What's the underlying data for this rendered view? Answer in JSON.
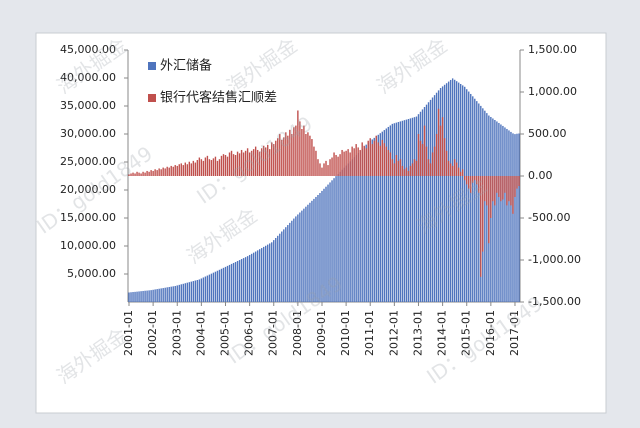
{
  "chart_data": {
    "type": "bar",
    "watermark": [
      "海外掘金",
      "ID：gold1849"
    ],
    "categories": [
      "2001-01",
      null,
      null,
      null,
      null,
      null,
      null,
      null,
      null,
      null,
      null,
      null,
      "2002-01",
      null,
      null,
      null,
      null,
      null,
      null,
      null,
      null,
      null,
      null,
      null,
      "2003-01",
      null,
      null,
      null,
      null,
      null,
      null,
      null,
      null,
      null,
      null,
      null,
      "2004-01",
      null,
      null,
      null,
      null,
      null,
      null,
      null,
      null,
      null,
      null,
      null,
      "2005-01",
      null,
      null,
      null,
      null,
      null,
      null,
      null,
      null,
      null,
      null,
      null,
      "2006-01",
      null,
      null,
      null,
      null,
      null,
      null,
      null,
      null,
      null,
      null,
      null,
      "2007-01",
      null,
      null,
      null,
      null,
      null,
      null,
      null,
      null,
      null,
      null,
      null,
      "2008-01",
      null,
      null,
      null,
      null,
      null,
      null,
      null,
      null,
      null,
      null,
      null,
      "2009-01",
      null,
      null,
      null,
      null,
      null,
      null,
      null,
      null,
      null,
      null,
      null,
      "2010-01",
      null,
      null,
      null,
      null,
      null,
      null,
      null,
      null,
      null,
      null,
      null,
      "2011-01",
      null,
      null,
      null,
      null,
      null,
      null,
      null,
      null,
      null,
      null,
      null,
      "2012-01",
      null,
      null,
      null,
      null,
      null,
      null,
      null,
      null,
      null,
      null,
      null,
      "2013-01",
      null,
      null,
      null,
      null,
      null,
      null,
      null,
      null,
      null,
      null,
      null,
      "2014-01",
      null,
      null,
      null,
      null,
      null,
      null,
      null,
      null,
      null,
      null,
      null,
      "2015-01",
      null,
      null,
      null,
      null,
      null,
      null,
      null,
      null,
      null,
      null,
      null,
      "2016-01",
      null,
      null,
      null,
      null,
      null,
      null,
      null,
      null,
      null,
      null,
      null,
      "2017-01",
      null,
      null
    ],
    "series": [
      {
        "name": "外汇储备",
        "color": "#4f74bd",
        "values": [
          1700,
          1740,
          1780,
          1810,
          1850,
          1890,
          1930,
          1970,
          2010,
          2040,
          2080,
          2120,
          2180,
          2250,
          2310,
          2370,
          2430,
          2490,
          2550,
          2620,
          2680,
          2740,
          2800,
          2860,
          2960,
          3060,
          3160,
          3250,
          3350,
          3450,
          3540,
          3640,
          3740,
          3840,
          3930,
          4030,
          4200,
          4380,
          4550,
          4720,
          4890,
          5060,
          5240,
          5410,
          5580,
          5750,
          5930,
          6100,
          6270,
          6450,
          6620,
          6800,
          6970,
          7140,
          7320,
          7490,
          7670,
          7840,
          8010,
          8190,
          8400,
          8600,
          8810,
          9010,
          9220,
          9430,
          9630,
          9840,
          10040,
          10250,
          10460,
          10660,
          11050,
          11430,
          11820,
          12200,
          12590,
          12970,
          13360,
          13740,
          14130,
          14510,
          14900,
          15280,
          15630,
          15980,
          16320,
          16670,
          17020,
          17370,
          17720,
          18070,
          18410,
          18760,
          19110,
          19460,
          19840,
          20220,
          20590,
          20970,
          21350,
          21730,
          22110,
          22480,
          22860,
          23240,
          23620,
          23990,
          24370,
          24740,
          25110,
          25490,
          25860,
          26230,
          26610,
          26980,
          27350,
          27730,
          28100,
          28470,
          28750,
          29030,
          29310,
          29590,
          29860,
          30140,
          30420,
          30700,
          30980,
          31260,
          31530,
          31810,
          31920,
          32030,
          32140,
          32250,
          32360,
          32470,
          32570,
          32680,
          32790,
          32900,
          33010,
          33120,
          33540,
          33970,
          34390,
          34820,
          35240,
          35670,
          36090,
          36520,
          36940,
          37370,
          37790,
          38210,
          38500,
          38790,
          39070,
          39360,
          39650,
          39930,
          39680,
          39430,
          39180,
          38930,
          38680,
          38430,
          38000,
          37580,
          37150,
          36730,
          36300,
          35870,
          35450,
          35020,
          34590,
          34160,
          33730,
          33300,
          33040,
          32770,
          32500,
          32240,
          31970,
          31700,
          31440,
          31170,
          30900,
          30640,
          30370,
          30110,
          29980,
          30050,
          30090
        ]
      },
      {
        "name": "银行代客结售汇顺差",
        "color": "#c0504d",
        "axis": "y2",
        "values": [
          20,
          30,
          40,
          30,
          50,
          40,
          30,
          50,
          40,
          60,
          50,
          70,
          60,
          80,
          70,
          90,
          80,
          100,
          90,
          110,
          100,
          120,
          110,
          130,
          120,
          140,
          150,
          130,
          160,
          140,
          170,
          150,
          180,
          160,
          190,
          220,
          200,
          180,
          220,
          240,
          200,
          190,
          210,
          230,
          180,
          200,
          240,
          260,
          250,
          230,
          280,
          300,
          260,
          250,
          290,
          270,
          310,
          280,
          300,
          330,
          280,
          300,
          320,
          350,
          310,
          290,
          330,
          360,
          340,
          370,
          320,
          400,
          380,
          420,
          450,
          500,
          430,
          460,
          520,
          480,
          550,
          500,
          580,
          600,
          780,
          650,
          560,
          600,
          500,
          520,
          480,
          440,
          350,
          300,
          200,
          150,
          100,
          150,
          180,
          130,
          200,
          220,
          280,
          250,
          230,
          260,
          310,
          290,
          300,
          320,
          280,
          350,
          330,
          380,
          340,
          310,
          400,
          360,
          330,
          420,
          450,
          380,
          420,
          480,
          400,
          360,
          430,
          390,
          350,
          310,
          280,
          200,
          150,
          250,
          180,
          200,
          120,
          80,
          100,
          60,
          120,
          150,
          200,
          180,
          500,
          420,
          380,
          600,
          350,
          200,
          150,
          280,
          350,
          500,
          800,
          600,
          700,
          450,
          300,
          180,
          150,
          120,
          200,
          160,
          100,
          50,
          80,
          -50,
          -100,
          -150,
          -200,
          -80,
          -50,
          -100,
          -200,
          -1200,
          -900,
          -300,
          -350,
          -800,
          -500,
          -300,
          -350,
          -200,
          -250,
          -300,
          -280,
          -200,
          -350,
          -300,
          -350,
          -450,
          -250,
          -150,
          -120
        ]
      }
    ],
    "ylim": [
      0,
      45000
    ],
    "yticks": [
      {
        "value": 5000,
        "label": "5,000.00"
      },
      {
        "value": 10000,
        "label": "10,000.00"
      },
      {
        "value": 15000,
        "label": "15,000.00"
      },
      {
        "value": 20000,
        "label": "20,000.00"
      },
      {
        "value": 25000,
        "label": "25,000.00"
      },
      {
        "value": 30000,
        "label": "30,000.00"
      },
      {
        "value": 35000,
        "label": "35,000.00"
      },
      {
        "value": 40000,
        "label": "40,000.00"
      },
      {
        "value": 45000,
        "label": "45,000.00"
      }
    ],
    "y2lim": [
      -1500,
      1500
    ],
    "y2ticks": [
      {
        "value": -1500,
        "label": "-1,500.00"
      },
      {
        "value": -1000,
        "label": "-1,000.00"
      },
      {
        "value": -500,
        "label": "-500.00"
      },
      {
        "value": 0,
        "label": "0.00"
      },
      {
        "value": 500,
        "label": "500.00"
      },
      {
        "value": 1000,
        "label": "1,000.00"
      },
      {
        "value": 1500,
        "label": "1,500.00"
      }
    ],
    "legend": "top-left"
  }
}
